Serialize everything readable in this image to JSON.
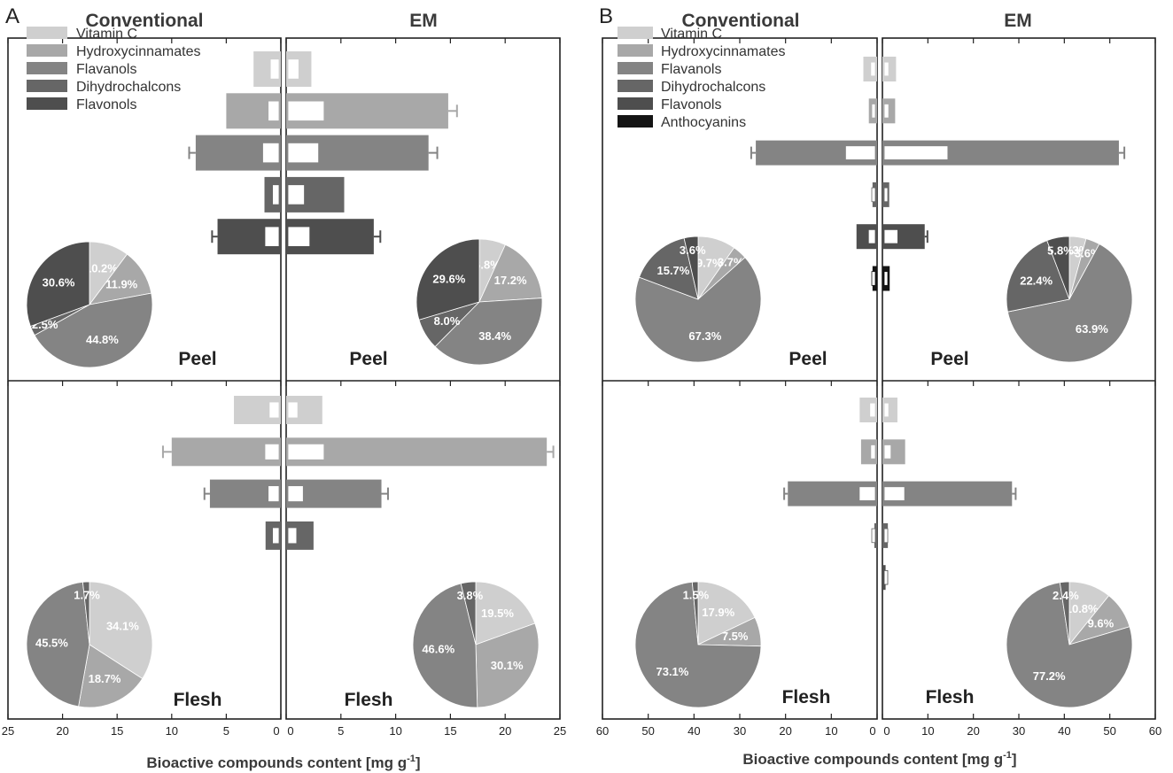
{
  "figure": {
    "panels": [
      {
        "id": "A",
        "label": "A",
        "left_title": "Conventional",
        "right_title": "EM",
        "xlabel_main": "Bioactive compounds content [mg g",
        "xlabel_sup": "-1",
        "xlabel_end": "]",
        "axis_max": 25,
        "ticks": [
          25,
          20,
          15,
          10,
          5,
          0,
          5,
          10,
          15,
          20,
          25
        ],
        "legend": [
          "Vitamin C",
          "Hydroxycinnamates",
          "Flavanols",
          "Dihydrochalcons",
          "Flavonols"
        ],
        "colors": [
          "#cfcfcf",
          "#a8a8a8",
          "#848484",
          "#666666",
          "#4e4e4e"
        ],
        "regions": [
          {
            "label": "Peel",
            "bars": [
              {
                "name": "Vitamin C",
                "conv_total": 2.5,
                "conv_free": 0.8,
                "em_total": 2.3,
                "em_free": 1.0,
                "conv_err": 0.0,
                "em_err": 0.0
              },
              {
                "name": "Hydroxycinnamates",
                "conv_total": 5.0,
                "conv_free": 1.0,
                "em_total": 14.8,
                "em_free": 3.3,
                "conv_err": 0.0,
                "em_err": 0.8
              },
              {
                "name": "Flavanols",
                "conv_total": 7.8,
                "conv_free": 1.5,
                "em_total": 13.0,
                "em_free": 2.8,
                "conv_err": 0.6,
                "em_err": 0.8
              },
              {
                "name": "Dihydrochalcons",
                "conv_total": 1.5,
                "conv_free": 0.6,
                "em_total": 5.3,
                "em_free": 1.5,
                "conv_err": 0.0,
                "em_err": 0.0
              },
              {
                "name": "Flavonols",
                "conv_total": 5.8,
                "conv_free": 1.3,
                "em_total": 8.0,
                "em_free": 2.0,
                "conv_err": 0.5,
                "em_err": 0.6
              }
            ],
            "pie_conv": {
              "values": [
                10.2,
                11.9,
                44.8,
                2.5,
                30.6
              ],
              "labels": [
                "10.2%",
                "11.9%",
                "44.8%",
                "2.5%",
                "30.6%"
              ]
            },
            "pie_em": {
              "values": [
                6.8,
                17.2,
                38.4,
                8.0,
                29.6
              ],
              "labels": [
                "6.8%",
                "17.2%",
                "38.4%",
                "8.0%",
                "29.6%"
              ]
            }
          },
          {
            "label": "Flesh",
            "bars": [
              {
                "name": "Vitamin C",
                "conv_total": 4.3,
                "conv_free": 0.9,
                "em_total": 3.3,
                "em_free": 0.9,
                "conv_err": 0.0,
                "em_err": 0.0
              },
              {
                "name": "Hydroxycinnamates",
                "conv_total": 10.0,
                "conv_free": 1.3,
                "em_total": 23.8,
                "em_free": 3.3,
                "conv_err": 0.8,
                "em_err": 0.6
              },
              {
                "name": "Flavanols",
                "conv_total": 6.5,
                "conv_free": 1.0,
                "em_total": 8.7,
                "em_free": 1.4,
                "conv_err": 0.5,
                "em_err": 0.6
              },
              {
                "name": "Dihydrochalcons",
                "conv_total": 1.4,
                "conv_free": 0.6,
                "em_total": 2.5,
                "em_free": 0.8,
                "conv_err": 0.0,
                "em_err": 0.0
              }
            ],
            "pie_conv": {
              "values": [
                34.1,
                18.7,
                45.5,
                1.7
              ],
              "labels": [
                "34.1%",
                "18.7%",
                "45.5%",
                "1.7%"
              ]
            },
            "pie_em": {
              "values": [
                19.5,
                30.1,
                46.6,
                3.8
              ],
              "labels": [
                "19.5%",
                "30.1%",
                "46.6%",
                "3.8%"
              ]
            }
          }
        ]
      },
      {
        "id": "B",
        "label": "B",
        "left_title": "Conventional",
        "right_title": "EM",
        "xlabel_main": "Bioactive compounds content [mg g",
        "xlabel_sup": "-1",
        "xlabel_end": "]",
        "axis_max": 60,
        "ticks": [
          60,
          50,
          40,
          30,
          20,
          10,
          0,
          10,
          20,
          30,
          40,
          50,
          60
        ],
        "legend": [
          "Vitamin C",
          "Hydroxycinnamates",
          "Flavanols",
          "Dihydrochalcons",
          "Flavonols",
          "Anthocyanins"
        ],
        "colors": [
          "#cfcfcf",
          "#a8a8a8",
          "#848484",
          "#666666",
          "#4e4e4e",
          "#141414"
        ],
        "regions": [
          {
            "label": "Peel",
            "bars": [
              {
                "name": "Vitamin C",
                "conv_total": 3.0,
                "conv_free": 1.0,
                "em_total": 3.0,
                "em_free": 1.0,
                "conv_err": 0.0,
                "em_err": 0.0
              },
              {
                "name": "Hydroxycinnamates",
                "conv_total": 1.8,
                "conv_free": 0.5,
                "em_total": 2.8,
                "em_free": 1.0,
                "conv_err": 0.0,
                "em_err": 0.0
              },
              {
                "name": "Flavanols",
                "conv_total": 26.5,
                "conv_free": 6.5,
                "em_total": 52.0,
                "em_free": 14.0,
                "conv_err": 1.0,
                "em_err": 1.2
              },
              {
                "name": "Dihydrochalcons",
                "conv_total": 1.0,
                "conv_free": 0.3,
                "em_total": 1.5,
                "em_free": 0.4,
                "conv_err": 0.0,
                "em_err": 0.0
              },
              {
                "name": "Flavonols",
                "conv_total": 4.5,
                "conv_free": 1.5,
                "em_total": 9.3,
                "em_free": 3.0,
                "conv_err": 0.0,
                "em_err": 0.6
              },
              {
                "name": "Anthocyanins",
                "conv_total": 1.0,
                "conv_free": 0.3,
                "em_total": 1.6,
                "em_free": 0.4,
                "conv_err": 0.0,
                "em_err": 0.0
              }
            ],
            "pie_conv": {
              "values": [
                9.7,
                3.7,
                67.3,
                15.7,
                3.6
              ],
              "labels": [
                "9.7%",
                "3.7%",
                "67.3%",
                "15.7%",
                "3.6%"
              ]
            },
            "pie_em": {
              "values": [
                4.3,
                3.6,
                63.9,
                22.4,
                5.8
              ],
              "labels": [
                "4.3%",
                "3.6%",
                "63.9%",
                "22.4%",
                "5.8%"
              ]
            }
          },
          {
            "label": "Flesh",
            "bars": [
              {
                "name": "Vitamin C",
                "conv_total": 3.8,
                "conv_free": 1.2,
                "em_total": 3.3,
                "em_free": 1.0,
                "conv_err": 0.0,
                "em_err": 0.0
              },
              {
                "name": "Hydroxycinnamates",
                "conv_total": 3.5,
                "conv_free": 1.0,
                "em_total": 5.0,
                "em_free": 1.5,
                "conv_err": 0.0,
                "em_err": 0.0
              },
              {
                "name": "Flavanols",
                "conv_total": 19.5,
                "conv_free": 3.5,
                "em_total": 28.5,
                "em_free": 4.5,
                "conv_err": 0.8,
                "em_err": 0.8
              },
              {
                "name": "Dihydrochalcons",
                "conv_total": 0.6,
                "conv_free": 0.2,
                "em_total": 1.2,
                "em_free": 0.3,
                "conv_err": 0.0,
                "em_err": 0.0
              },
              {
                "name": "Flavonols",
                "conv_total": 0.0,
                "conv_free": 0.0,
                "em_total": 0.7,
                "em_free": 0.2,
                "conv_err": 0.0,
                "em_err": 0.0
              }
            ],
            "pie_conv": {
              "values": [
                17.9,
                7.5,
                73.1,
                1.5
              ],
              "labels": [
                "17.9%",
                "7.5%",
                "73.1%",
                "1.5%"
              ]
            },
            "pie_em": {
              "values": [
                10.8,
                9.6,
                77.2,
                2.4
              ],
              "labels": [
                "10.8%",
                "9.6%",
                "77.2%",
                "2.4%"
              ]
            }
          }
        ]
      }
    ]
  }
}
